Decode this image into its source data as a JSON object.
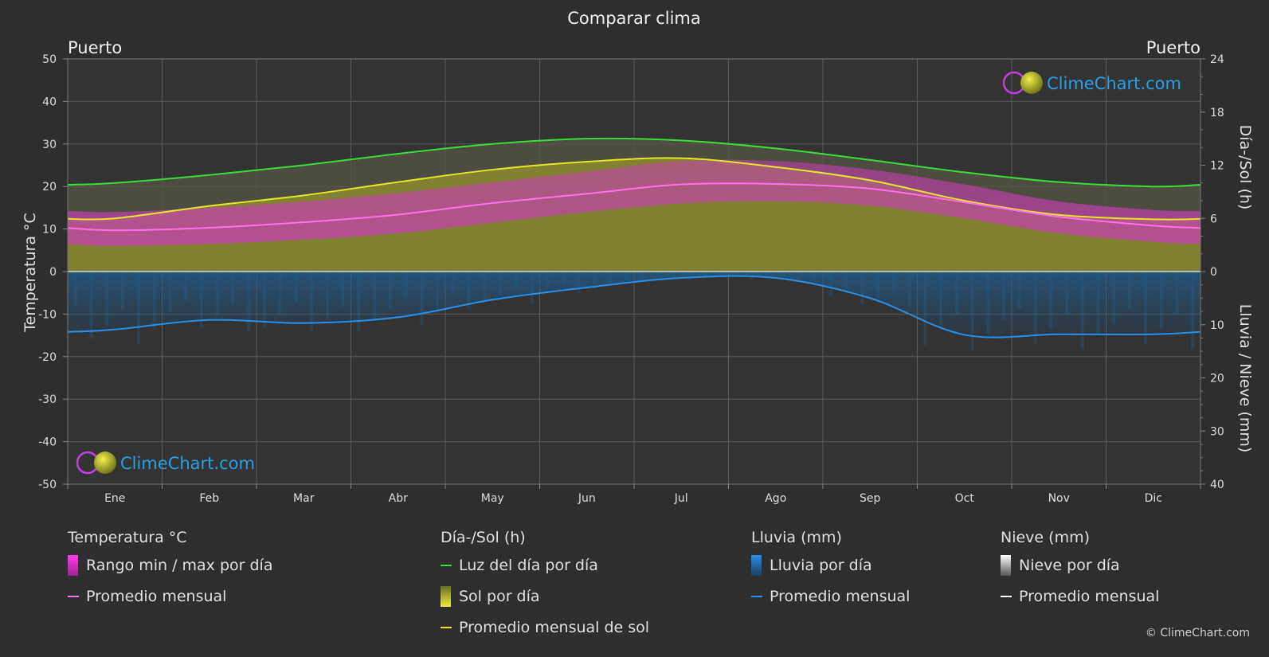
{
  "title": "Comparar clima",
  "location_left": "Puerto",
  "location_right": "Puerto",
  "axes": {
    "left_label": "Temperatura °C",
    "right_top_label": "Día-/Sol (h)",
    "right_bottom_label": "Lluvia / Nieve (mm)",
    "left_ticks": [
      "50",
      "40",
      "30",
      "20",
      "10",
      "0",
      "-10",
      "-20",
      "-30",
      "-40",
      "-50"
    ],
    "right_top_ticks": [
      "24",
      "18",
      "12",
      "6",
      "0"
    ],
    "right_bottom_ticks": [
      "10",
      "20",
      "30",
      "40"
    ]
  },
  "brand": {
    "text": "ClimeChart.com",
    "copyright": "© ClimeChart.com"
  },
  "colors": {
    "background": "#2e2e2e",
    "daylight": "#3ddc3d",
    "sunshine_avg": "#e6e62a",
    "sunshine_fill": "#8a8a2e",
    "temp_avg": "#ff6fe8",
    "temp_range": "#d43fbf",
    "rain_avg": "#2a8fe6",
    "rain_fill": "#1f5f8f",
    "brand": "#2a9fe6"
  },
  "legend": {
    "temp": {
      "head": "Temperatura °C",
      "range": "Rango min / max por día",
      "avg": "Promedio mensual"
    },
    "sun": {
      "head": "Día-/Sol (h)",
      "daylight": "Luz del día por día",
      "sun": "Sol por día",
      "avg": "Promedio mensual de sol"
    },
    "rain": {
      "head": "Lluvia (mm)",
      "rain": "Lluvia por día",
      "avg": "Promedio mensual"
    },
    "snow": {
      "head": "Nieve (mm)",
      "snow": "Nieve por día",
      "avg": "Promedio mensual"
    }
  },
  "chart_data": {
    "type": "line",
    "title": "Comparar clima",
    "categories": [
      "Ene",
      "Feb",
      "Mar",
      "Abr",
      "May",
      "Jun",
      "Jul",
      "Ago",
      "Sep",
      "Oct",
      "Nov",
      "Dic"
    ],
    "temp_ylim": [
      -50,
      50
    ],
    "hours_ylim": [
      0,
      24
    ],
    "precip_ylim": [
      0,
      40
    ],
    "series": [
      {
        "name": "Luz del día por día",
        "axis": "hours",
        "values": [
          10.0,
          10.9,
          12.0,
          13.3,
          14.4,
          15.0,
          14.8,
          13.9,
          12.6,
          11.2,
          10.1,
          9.6
        ]
      },
      {
        "name": "Promedio mensual de sol",
        "axis": "hours",
        "values": [
          6.0,
          7.4,
          8.6,
          10.1,
          11.5,
          12.4,
          12.8,
          11.8,
          10.3,
          8.0,
          6.4,
          5.9
        ]
      },
      {
        "name": "Promedio mensual",
        "group": "Temperatura °C",
        "axis": "temp",
        "values": [
          9.7,
          10.3,
          11.6,
          13.4,
          16.1,
          18.3,
          20.5,
          20.6,
          19.5,
          16.3,
          12.9,
          10.8
        ]
      },
      {
        "name": "Promedio mensual",
        "group": "Lluvia (mm)",
        "axis": "precip",
        "values": [
          10.9,
          9.1,
          9.7,
          8.6,
          5.3,
          3.0,
          1.2,
          1.2,
          5.0,
          11.9,
          11.8,
          11.8
        ]
      }
    ],
    "temp_min_daily_avg": [
      6,
      6.5,
      7.5,
      9,
      11.5,
      14,
      16,
      16.5,
      15.5,
      12.5,
      9,
      7
    ],
    "temp_max_daily_avg": [
      14,
      15,
      16.5,
      18.5,
      21,
      23.5,
      26,
      26,
      24,
      20.5,
      16.5,
      14.5
    ],
    "grid": true,
    "legend_position": "bottom"
  }
}
